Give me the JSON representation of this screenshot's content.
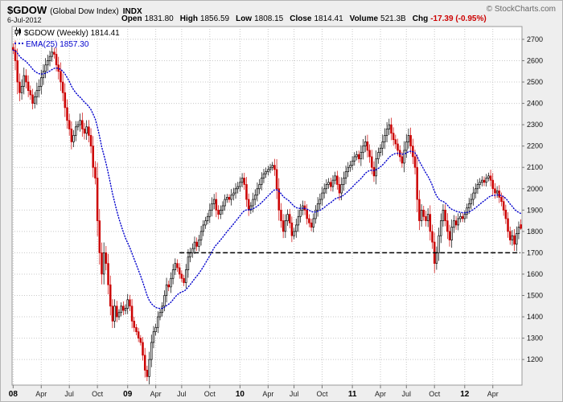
{
  "header": {
    "symbol": "$GDOW",
    "name": "(Global Dow Index)",
    "exchange": "INDX",
    "copyright": "© StockCharts.com",
    "date": "6-Jul-2012",
    "quote": {
      "open_label": "Open",
      "open": "1831.80",
      "high_label": "High",
      "high": "1856.59",
      "low_label": "Low",
      "low": "1808.15",
      "close_label": "Close",
      "close": "1814.41",
      "volume_label": "Volume",
      "volume": "521.3B",
      "chg_label": "Chg",
      "chg": "-17.39 (-0.95%)"
    }
  },
  "legend": {
    "main": "$GDOW (Weekly) 1814.41",
    "ema": "EMA(25) 1857.30"
  },
  "colors": {
    "up": "#000000",
    "down": "#cc0000",
    "ema": "#0000cc",
    "support": "#000000",
    "grid": "#c8c8c8",
    "axis": "#999999",
    "chg_negative": "#cc0000",
    "plot_bg": "#ffffff",
    "outer_bg": "#eeeeee"
  },
  "chart_data": {
    "type": "candlestick",
    "title": "$GDOW (Weekly)",
    "timeframe": "Weekly",
    "last_value": 1814.41,
    "ema_period": 25,
    "ema_last": 1857.3,
    "grid": true,
    "legend_position": "top-left",
    "ylim": [
      1080,
      2760
    ],
    "y_ticks": [
      1200,
      1300,
      1400,
      1500,
      1600,
      1700,
      1800,
      1900,
      2000,
      2100,
      2200,
      2300,
      2400,
      2500,
      2600,
      2700
    ],
    "x_ticks": [
      {
        "label": "08",
        "index": 0,
        "bold": true
      },
      {
        "label": "Apr",
        "index": 13,
        "bold": false
      },
      {
        "label": "Jul",
        "index": 26,
        "bold": false
      },
      {
        "label": "Oct",
        "index": 39,
        "bold": false
      },
      {
        "label": "09",
        "index": 53,
        "bold": true
      },
      {
        "label": "Apr",
        "index": 66,
        "bold": false
      },
      {
        "label": "Jul",
        "index": 78,
        "bold": false
      },
      {
        "label": "Oct",
        "index": 91,
        "bold": false
      },
      {
        "label": "10",
        "index": 105,
        "bold": true
      },
      {
        "label": "Apr",
        "index": 118,
        "bold": false
      },
      {
        "label": "Jul",
        "index": 130,
        "bold": false
      },
      {
        "label": "Oct",
        "index": 143,
        "bold": false
      },
      {
        "label": "11",
        "index": 157,
        "bold": true
      },
      {
        "label": "Apr",
        "index": 170,
        "bold": false
      },
      {
        "label": "Jul",
        "index": 182,
        "bold": false
      },
      {
        "label": "Oct",
        "index": 195,
        "bold": false
      },
      {
        "label": "12",
        "index": 209,
        "bold": true
      },
      {
        "label": "Apr",
        "index": 222,
        "bold": false
      }
    ],
    "weekly_closes": [
      2650,
      2600,
      2500,
      2450,
      2480,
      2530,
      2500,
      2460,
      2440,
      2400,
      2430,
      2460,
      2480,
      2520,
      2550,
      2580,
      2600,
      2620,
      2640,
      2630,
      2580,
      2550,
      2500,
      2450,
      2380,
      2320,
      2280,
      2220,
      2250,
      2290,
      2300,
      2320,
      2280,
      2260,
      2290,
      2250,
      2200,
      2100,
      2050,
      1850,
      1700,
      1600,
      1700,
      1650,
      1550,
      1450,
      1380,
      1450,
      1400,
      1420,
      1450,
      1430,
      1440,
      1480,
      1450,
      1380,
      1350,
      1330,
      1300,
      1280,
      1220,
      1150,
      1120,
      1200,
      1280,
      1330,
      1350,
      1400,
      1420,
      1450,
      1500,
      1550,
      1540,
      1580,
      1620,
      1650,
      1630,
      1600,
      1580,
      1560,
      1620,
      1680,
      1700,
      1720,
      1750,
      1730,
      1760,
      1800,
      1830,
      1850,
      1870,
      1900,
      1930,
      1950,
      1900,
      1880,
      1900,
      1920,
      1950,
      1960,
      1950,
      1970,
      1980,
      2000,
      2010,
      2030,
      2050,
      2020,
      1950,
      1900,
      1920,
      1950,
      1970,
      2000,
      2020,
      2050,
      2070,
      2080,
      2090,
      2100,
      2110,
      2090,
      2000,
      1900,
      1850,
      1800,
      1850,
      1880,
      1840,
      1780,
      1800,
      1830,
      1870,
      1900,
      1920,
      1900,
      1860,
      1840,
      1820,
      1860,
      1900,
      1930,
      1950,
      1980,
      2000,
      2020,
      2030,
      2010,
      2040,
      2060,
      2020,
      1980,
      2020,
      2050,
      2080,
      2100,
      2110,
      2130,
      2150,
      2160,
      2140,
      2170,
      2200,
      2220,
      2180,
      2150,
      2100,
      2060,
      2140,
      2170,
      2190,
      2220,
      2250,
      2280,
      2300,
      2260,
      2230,
      2210,
      2180,
      2150,
      2120,
      2180,
      2220,
      2250,
      2200,
      2150,
      2100,
      1950,
      1850,
      1900,
      1870,
      1850,
      1880,
      1800,
      1750,
      1650,
      1700,
      1780,
      1850,
      1900,
      1850,
      1800,
      1760,
      1820,
      1850,
      1830,
      1860,
      1870,
      1860,
      1880,
      1910,
      1930,
      1950,
      1980,
      2000,
      2020,
      2030,
      2040,
      2030,
      2050,
      2060,
      2040,
      2000,
      1980,
      1990,
      1960,
      1940,
      1900,
      1860,
      1800,
      1760,
      1780,
      1740,
      1790,
      1820,
      1814.41
    ],
    "last_bar": {
      "open": 1831.8,
      "high": 1856.59,
      "low": 1808.15,
      "close": 1814.41
    },
    "support_line": {
      "value": 1700,
      "from_index": 77,
      "to_index": 236
    }
  }
}
